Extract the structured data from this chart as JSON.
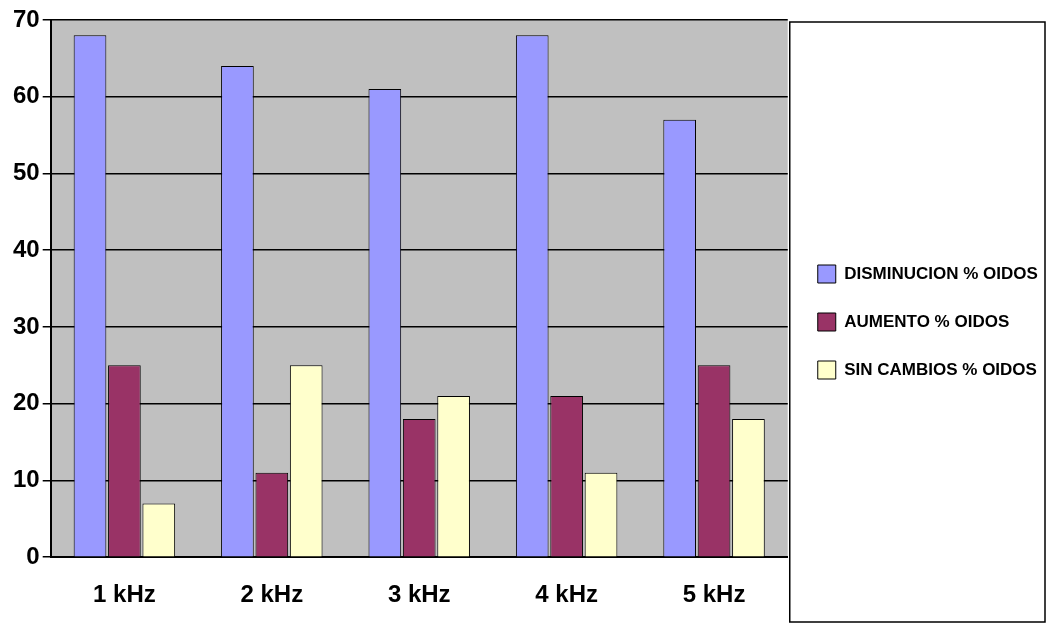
{
  "chart_data": {
    "type": "bar",
    "categories": [
      "1 kHz",
      "2 kHz",
      "3 kHz",
      "4 kHz",
      "5 kHz"
    ],
    "series": [
      {
        "name": "DISMINUCION % OIDOS",
        "color": "#9999ff",
        "values": [
          68,
          64,
          61,
          68,
          57
        ]
      },
      {
        "name": "AUMENTO % OIDOS",
        "color": "#993366",
        "values": [
          25,
          11,
          18,
          21,
          25
        ]
      },
      {
        "name": "SIN CAMBIOS % OIDOS",
        "color": "#ffffcc",
        "values": [
          7,
          25,
          21,
          11,
          18
        ]
      }
    ],
    "ylim": [
      0,
      70
    ],
    "yticks": [
      0,
      10,
      20,
      30,
      40,
      50,
      60,
      70
    ],
    "grid": "y",
    "legend": "right"
  }
}
